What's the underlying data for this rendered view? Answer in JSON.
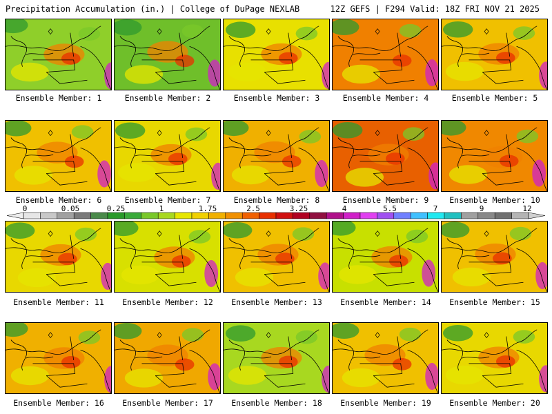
{
  "header": {
    "left": "Precipitation Accumulation (in.) | College of DuPage NEXLAB",
    "right": "12Z GEFS | F294 Valid: 18Z FRI NOV 21 2025"
  },
  "members": [
    {
      "label": "Ensemble Member: 1",
      "base": "#8fcf2a"
    },
    {
      "label": "Ensemble Member: 2",
      "base": "#6fbf2a"
    },
    {
      "label": "Ensemble Member: 3",
      "base": "#e8e000"
    },
    {
      "label": "Ensemble Member: 4",
      "base": "#f08000"
    },
    {
      "label": "Ensemble Member: 5",
      "base": "#f0c000"
    },
    {
      "label": "Ensemble Member: 6",
      "base": "#f0c000"
    },
    {
      "label": "Ensemble Member: 7",
      "base": "#e8d800"
    },
    {
      "label": "Ensemble Member: 8",
      "base": "#f0b000"
    },
    {
      "label": "Ensemble Member: 9",
      "base": "#e86000"
    },
    {
      "label": "Ensemble Member: 10",
      "base": "#f08800"
    },
    {
      "label": "Ensemble Member: 11",
      "base": "#e8d800"
    },
    {
      "label": "Ensemble Member: 12",
      "base": "#d8e000"
    },
    {
      "label": "Ensemble Member: 13",
      "base": "#f0c000"
    },
    {
      "label": "Ensemble Member: 14",
      "base": "#c8e000"
    },
    {
      "label": "Ensemble Member: 15",
      "base": "#f0c000"
    },
    {
      "label": "Ensemble Member: 16",
      "base": "#f0b000"
    },
    {
      "label": "Ensemble Member: 17",
      "base": "#f0a800"
    },
    {
      "label": "Ensemble Member: 18",
      "base": "#a8d820"
    },
    {
      "label": "Ensemble Member: 19",
      "base": "#f0c000"
    },
    {
      "label": "Ensemble Member: 20",
      "base": "#e8d800"
    }
  ],
  "colorbar": {
    "colors": [
      "#e6e6e6",
      "#c8c8c8",
      "#a0a0a0",
      "#7a7a7a",
      "#4a8a4a",
      "#2a9a2a",
      "#3aaa3a",
      "#7ac82a",
      "#a8d820",
      "#e6e600",
      "#f0d000",
      "#f0b000",
      "#f09000",
      "#f06000",
      "#e83000",
      "#d01010",
      "#b00020",
      "#901040",
      "#b0108a",
      "#d020c8",
      "#e040f0",
      "#a050f0",
      "#7080ff",
      "#40c0ff",
      "#20e8f0",
      "#20c0c0",
      "#a0a0a0",
      "#888888",
      "#707070",
      "#b4b4b4"
    ],
    "ticks": [
      "0",
      "0.05",
      "0.25",
      "1",
      "1.75",
      "2.5",
      "3.25",
      "4",
      "5.5",
      "7",
      "9",
      "12"
    ]
  }
}
